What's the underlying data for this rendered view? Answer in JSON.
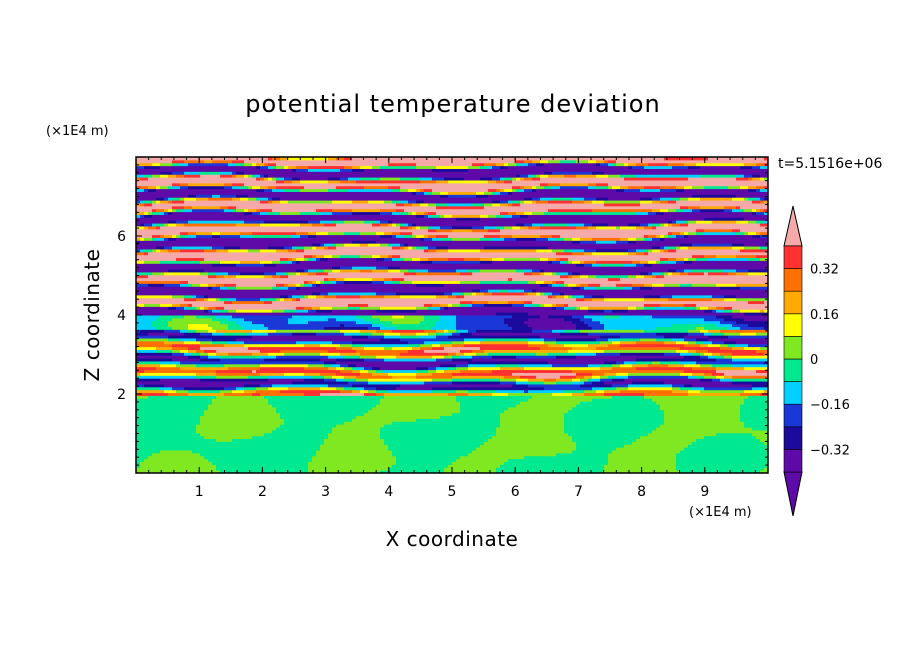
{
  "chart_data": {
    "type": "heatmap",
    "title": "potential temperature deviation",
    "xlabel": "X coordinate",
    "ylabel": "Z coordinate",
    "x_unit": "(×1E4 m)",
    "y_unit": "(×1E4 m)",
    "time_label": "t=5.1516e+06",
    "xlim": [
      0,
      10
    ],
    "ylim": [
      0,
      8
    ],
    "x_ticks": [
      "1",
      "2",
      "3",
      "4",
      "5",
      "6",
      "7",
      "8",
      "9"
    ],
    "y_ticks": [
      "2",
      "4",
      "6"
    ],
    "colorbar": {
      "levels": [
        -0.4,
        -0.32,
        -0.24,
        -0.16,
        -0.08,
        0,
        0.08,
        0.16,
        0.24,
        0.32,
        0.4
      ],
      "tick_labels": [
        "0.32",
        "0.16",
        "0",
        "−0.16",
        "−0.32"
      ],
      "tick_values": [
        0.32,
        0.16,
        0,
        -0.16,
        -0.32
      ],
      "colors": [
        "#5e0aa8",
        "#1c0a9c",
        "#1a38d8",
        "#00d0ff",
        "#00e890",
        "#80e820",
        "#ffff00",
        "#ffaa00",
        "#ff7000",
        "#ff3030",
        "#f5a9a9"
      ],
      "extend": "both"
    },
    "field_description_by_height": [
      {
        "z_range": [
          0,
          2
        ],
        "value_range": [
          -0.08,
          0.08
        ]
      },
      {
        "z_range": [
          2,
          3.6
        ],
        "value_range": [
          -0.4,
          0.4
        ]
      },
      {
        "z_range": [
          3.6,
          8
        ],
        "value_range": [
          -0.4,
          0.4
        ]
      }
    ]
  }
}
